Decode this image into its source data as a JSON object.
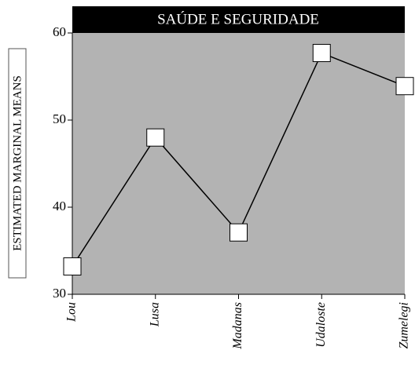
{
  "chart_data": {
    "type": "line",
    "title": "SAÚDE E SEGURIDADE",
    "y_label": "ESTIMATED MARGINAL MEANS",
    "categories": [
      "Lou",
      "Lusa",
      "Madanas",
      "Udaloste",
      "Zumelegi"
    ],
    "series": [
      {
        "name": null,
        "color": "#000000",
        "values": [
          33.2,
          48,
          37.1,
          57.7,
          53.9
        ]
      }
    ],
    "ylim": [
      30,
      60
    ],
    "yticks": [
      30,
      40,
      50,
      60
    ],
    "grid": false,
    "background": "#b3b3b3",
    "marker_color": "#ffffff"
  }
}
